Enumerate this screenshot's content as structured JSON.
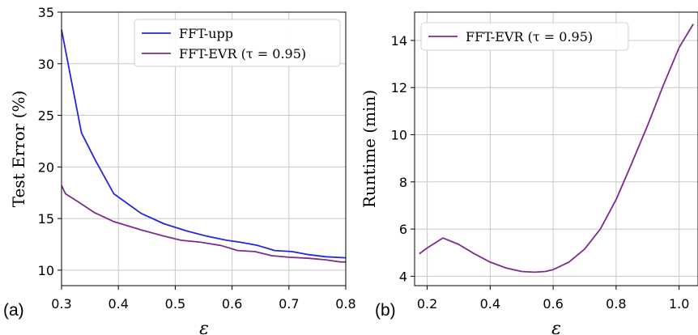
{
  "chart_data": [
    {
      "type": "line",
      "panel_label": "(a)",
      "xlabel": "ε",
      "ylabel": "Test Error (%)",
      "xlim": [
        0.3,
        0.8
      ],
      "ylim": [
        8.5,
        35
      ],
      "xticks": [
        0.3,
        0.4,
        0.5,
        0.6,
        0.7,
        0.8
      ],
      "xtick_labels": [
        "0.3",
        "0.4",
        "0.5",
        "0.6",
        "0.7",
        "0.8"
      ],
      "yticks": [
        10,
        15,
        20,
        25,
        30,
        35
      ],
      "ytick_labels": [
        "10",
        "15",
        "20",
        "25",
        "30",
        "35"
      ],
      "grid": true,
      "legend": "top-right",
      "series": [
        {
          "name": "FFT-upp",
          "color": "#2525dc",
          "x": [
            0.3,
            0.335,
            0.36,
            0.392,
            0.44,
            0.48,
            0.52,
            0.555,
            0.59,
            0.615,
            0.645,
            0.675,
            0.705,
            0.735,
            0.765,
            0.8
          ],
          "y": [
            33.3,
            23.3,
            20.6,
            17.4,
            15.5,
            14.5,
            13.8,
            13.3,
            12.9,
            12.7,
            12.4,
            11.9,
            11.8,
            11.5,
            11.3,
            11.2
          ]
        },
        {
          "name": "FFT-EVR (τ = 0.95)",
          "color": "#7c2c8c",
          "x": [
            0.3,
            0.307,
            0.33,
            0.357,
            0.392,
            0.44,
            0.48,
            0.51,
            0.545,
            0.58,
            0.61,
            0.64,
            0.67,
            0.7,
            0.735,
            0.765,
            0.79,
            0.8
          ],
          "y": [
            18.2,
            17.4,
            16.6,
            15.6,
            14.7,
            13.9,
            13.3,
            12.9,
            12.7,
            12.4,
            11.9,
            11.8,
            11.4,
            11.25,
            11.15,
            11.0,
            10.8,
            10.8
          ]
        }
      ]
    },
    {
      "type": "line",
      "panel_label": "(b)",
      "xlabel": "ε",
      "ylabel": "Runtime (min)",
      "xlim": [
        0.16,
        1.06
      ],
      "ylim": [
        3.6,
        15.2
      ],
      "xticks": [
        0.2,
        0.4,
        0.6,
        0.8,
        1.0
      ],
      "xtick_labels": [
        "0.2",
        "0.4",
        "0.6",
        "0.8",
        "1.0"
      ],
      "yticks": [
        4,
        6,
        8,
        10,
        12,
        14
      ],
      "ytick_labels": [
        "4",
        "6",
        "8",
        "10",
        "12",
        "14"
      ],
      "grid": true,
      "legend": "top-left",
      "series": [
        {
          "name": "FFT-EVR (τ = 0.95)",
          "color": "#7c2c8c",
          "x": [
            0.175,
            0.2,
            0.25,
            0.3,
            0.35,
            0.4,
            0.45,
            0.5,
            0.54,
            0.575,
            0.6,
            0.65,
            0.7,
            0.75,
            0.8,
            0.85,
            0.9,
            0.95,
            1.0,
            1.045
          ],
          "y": [
            4.95,
            5.2,
            5.62,
            5.35,
            4.95,
            4.6,
            4.35,
            4.2,
            4.17,
            4.2,
            4.28,
            4.6,
            5.15,
            6.0,
            7.25,
            8.8,
            10.4,
            12.1,
            13.7,
            14.7
          ]
        }
      ]
    }
  ]
}
